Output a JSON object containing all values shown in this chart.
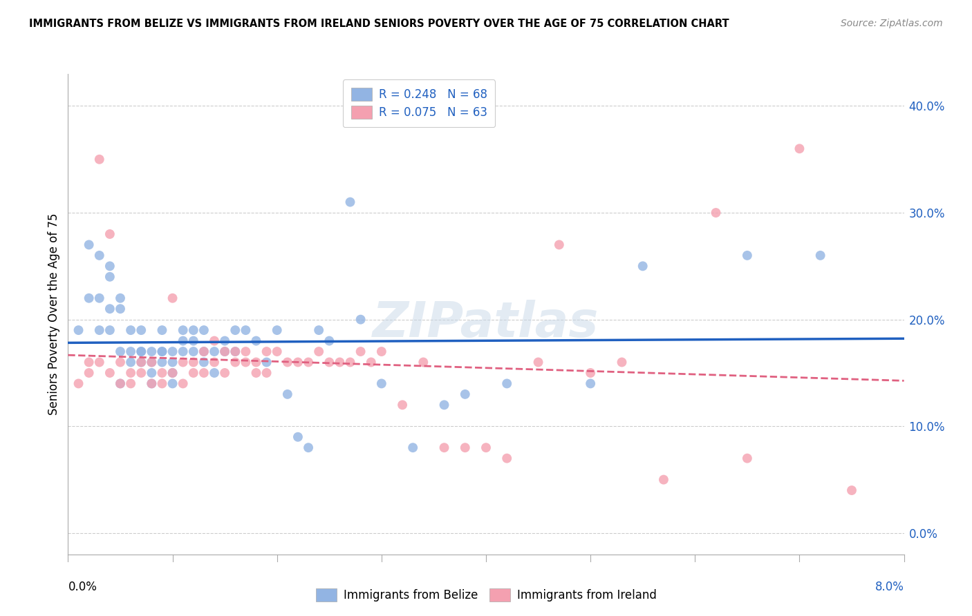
{
  "title": "IMMIGRANTS FROM BELIZE VS IMMIGRANTS FROM IRELAND SENIORS POVERTY OVER THE AGE OF 75 CORRELATION CHART",
  "source": "Source: ZipAtlas.com",
  "ylabel": "Seniors Poverty Over the Age of 75",
  "xlim": [
    0.0,
    0.08
  ],
  "ylim": [
    -0.02,
    0.43
  ],
  "belize_R": 0.248,
  "belize_N": 68,
  "ireland_R": 0.075,
  "ireland_N": 63,
  "belize_color": "#92b4e3",
  "ireland_color": "#f4a0b0",
  "belize_line_color": "#2060c0",
  "ireland_line_color": "#e06080",
  "watermark": "ZIPatlas",
  "watermark_color": "#c8d8e8",
  "legend_label_belize": "Immigrants from Belize",
  "legend_label_ireland": "Immigrants from Ireland",
  "belize_x": [
    0.001,
    0.002,
    0.002,
    0.003,
    0.003,
    0.003,
    0.004,
    0.004,
    0.004,
    0.004,
    0.005,
    0.005,
    0.005,
    0.005,
    0.006,
    0.006,
    0.006,
    0.007,
    0.007,
    0.007,
    0.007,
    0.008,
    0.008,
    0.008,
    0.008,
    0.009,
    0.009,
    0.009,
    0.009,
    0.01,
    0.01,
    0.01,
    0.01,
    0.011,
    0.011,
    0.011,
    0.012,
    0.012,
    0.012,
    0.013,
    0.013,
    0.013,
    0.014,
    0.014,
    0.015,
    0.015,
    0.016,
    0.016,
    0.017,
    0.018,
    0.019,
    0.02,
    0.021,
    0.022,
    0.023,
    0.024,
    0.025,
    0.027,
    0.028,
    0.03,
    0.033,
    0.036,
    0.038,
    0.042,
    0.05,
    0.055,
    0.065,
    0.072
  ],
  "belize_y": [
    0.19,
    0.27,
    0.22,
    0.26,
    0.22,
    0.19,
    0.25,
    0.24,
    0.21,
    0.19,
    0.22,
    0.21,
    0.17,
    0.14,
    0.19,
    0.17,
    0.16,
    0.19,
    0.17,
    0.17,
    0.16,
    0.17,
    0.16,
    0.15,
    0.14,
    0.19,
    0.17,
    0.17,
    0.16,
    0.17,
    0.16,
    0.15,
    0.14,
    0.19,
    0.18,
    0.17,
    0.19,
    0.18,
    0.17,
    0.19,
    0.17,
    0.16,
    0.17,
    0.15,
    0.18,
    0.17,
    0.19,
    0.17,
    0.19,
    0.18,
    0.16,
    0.19,
    0.13,
    0.09,
    0.08,
    0.19,
    0.18,
    0.31,
    0.2,
    0.14,
    0.08,
    0.12,
    0.13,
    0.14,
    0.14,
    0.25,
    0.26,
    0.26
  ],
  "ireland_x": [
    0.001,
    0.002,
    0.002,
    0.003,
    0.003,
    0.004,
    0.004,
    0.005,
    0.005,
    0.006,
    0.006,
    0.007,
    0.007,
    0.008,
    0.008,
    0.009,
    0.009,
    0.01,
    0.01,
    0.011,
    0.011,
    0.012,
    0.012,
    0.013,
    0.013,
    0.014,
    0.014,
    0.015,
    0.015,
    0.016,
    0.016,
    0.017,
    0.017,
    0.018,
    0.018,
    0.019,
    0.019,
    0.02,
    0.021,
    0.022,
    0.023,
    0.024,
    0.025,
    0.026,
    0.027,
    0.028,
    0.029,
    0.03,
    0.032,
    0.034,
    0.036,
    0.038,
    0.04,
    0.042,
    0.045,
    0.047,
    0.05,
    0.053,
    0.057,
    0.062,
    0.065,
    0.07,
    0.075
  ],
  "ireland_y": [
    0.14,
    0.16,
    0.15,
    0.35,
    0.16,
    0.28,
    0.15,
    0.16,
    0.14,
    0.15,
    0.14,
    0.16,
    0.15,
    0.16,
    0.14,
    0.15,
    0.14,
    0.22,
    0.15,
    0.16,
    0.14,
    0.16,
    0.15,
    0.17,
    0.15,
    0.18,
    0.16,
    0.17,
    0.15,
    0.17,
    0.16,
    0.17,
    0.16,
    0.16,
    0.15,
    0.17,
    0.15,
    0.17,
    0.16,
    0.16,
    0.16,
    0.17,
    0.16,
    0.16,
    0.16,
    0.17,
    0.16,
    0.17,
    0.12,
    0.16,
    0.08,
    0.08,
    0.08,
    0.07,
    0.16,
    0.27,
    0.15,
    0.16,
    0.05,
    0.3,
    0.07,
    0.36,
    0.04
  ]
}
